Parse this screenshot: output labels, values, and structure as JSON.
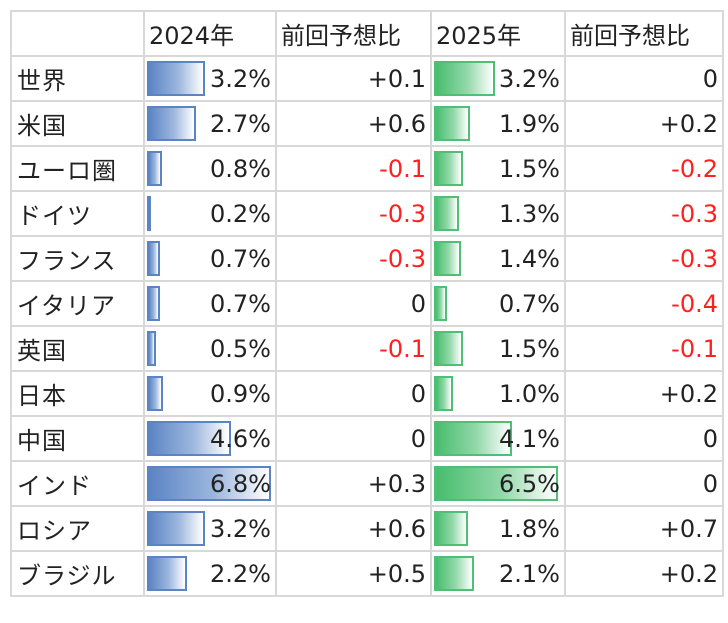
{
  "header": {
    "name_col": "",
    "year_2024": "2024年",
    "diff_2024": "前回予想比",
    "year_2025": "2025年",
    "diff_2025": "前回予想比"
  },
  "bar_colors": {
    "col_2024": "#5b84c4",
    "col_2025": "#4fbf76",
    "negative_text": "#ff1f1f"
  },
  "data_bar_max": {
    "col_2024": 6.8,
    "col_2025": 6.5
  },
  "rows": [
    {
      "name": "世界",
      "v2024": 3.2,
      "v2024_label": "3.2%",
      "d2024": "+0.1",
      "v2025": 3.2,
      "v2025_label": "3.2%",
      "d2025": "0"
    },
    {
      "name": "米国",
      "v2024": 2.7,
      "v2024_label": "2.7%",
      "d2024": "+0.6",
      "v2025": 1.9,
      "v2025_label": "1.9%",
      "d2025": "+0.2"
    },
    {
      "name": "ユーロ圏",
      "v2024": 0.8,
      "v2024_label": "0.8%",
      "d2024": "-0.1",
      "v2025": 1.5,
      "v2025_label": "1.5%",
      "d2025": "-0.2"
    },
    {
      "name": "ドイツ",
      "v2024": 0.2,
      "v2024_label": "0.2%",
      "d2024": "-0.3",
      "v2025": 1.3,
      "v2025_label": "1.3%",
      "d2025": "-0.3"
    },
    {
      "name": "フランス",
      "v2024": 0.7,
      "v2024_label": "0.7%",
      "d2024": "-0.3",
      "v2025": 1.4,
      "v2025_label": "1.4%",
      "d2025": "-0.3"
    },
    {
      "name": "イタリア",
      "v2024": 0.7,
      "v2024_label": "0.7%",
      "d2024": "0",
      "v2025": 0.7,
      "v2025_label": "0.7%",
      "d2025": "-0.4"
    },
    {
      "name": "英国",
      "v2024": 0.5,
      "v2024_label": "0.5%",
      "d2024": "-0.1",
      "v2025": 1.5,
      "v2025_label": "1.5%",
      "d2025": "-0.1"
    },
    {
      "name": "日本",
      "v2024": 0.9,
      "v2024_label": "0.9%",
      "d2024": "0",
      "v2025": 1.0,
      "v2025_label": "1.0%",
      "d2025": "+0.2"
    },
    {
      "name": "中国",
      "v2024": 4.6,
      "v2024_label": "4.6%",
      "d2024": "0",
      "v2025": 4.1,
      "v2025_label": "4.1%",
      "d2025": "0"
    },
    {
      "name": "インド",
      "v2024": 6.8,
      "v2024_label": "6.8%",
      "d2024": "+0.3",
      "v2025": 6.5,
      "v2025_label": "6.5%",
      "d2025": "0"
    },
    {
      "name": "ロシア",
      "v2024": 3.2,
      "v2024_label": "3.2%",
      "d2024": "+0.6",
      "v2025": 1.8,
      "v2025_label": "1.8%",
      "d2025": "+0.7"
    },
    {
      "name": "ブラジル",
      "v2024": 2.2,
      "v2024_label": "2.2%",
      "d2024": "+0.5",
      "v2025": 2.1,
      "v2025_label": "2.1%",
      "d2025": "+0.2"
    }
  ]
}
